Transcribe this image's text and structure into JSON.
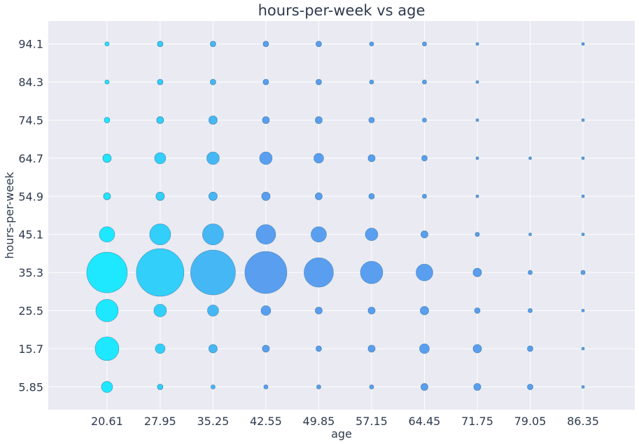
{
  "chart_data": {
    "type": "scatter",
    "title": "hours-per-week vs age",
    "xlabel": "age",
    "ylabel": "hours-per-week",
    "x_ticks": [
      "20.61",
      "27.95",
      "35.25",
      "42.55",
      "49.85",
      "57.15",
      "64.45",
      "71.75",
      "79.05",
      "86.35"
    ],
    "y_ticks": [
      "5.85",
      "15.7",
      "25.5",
      "35.3",
      "45.1",
      "54.9",
      "64.7",
      "74.5",
      "84.3",
      "94.1"
    ],
    "xlim": [
      12.5,
      93.5
    ],
    "ylim": [
      0.0,
      100.0
    ],
    "grid": true,
    "size_encoding": "relative count",
    "colors": {
      "background": "#e9eaf2",
      "grid": "#ffffff",
      "young": "#1ee8ff",
      "old": "#5a9ef0",
      "edge": "#2b6f9a"
    },
    "points": [
      {
        "x": 20.61,
        "y": 94.1,
        "s": 3
      },
      {
        "x": 27.95,
        "y": 94.1,
        "s": 4
      },
      {
        "x": 35.25,
        "y": 94.1,
        "s": 4
      },
      {
        "x": 42.55,
        "y": 94.1,
        "s": 4
      },
      {
        "x": 49.85,
        "y": 94.1,
        "s": 4
      },
      {
        "x": 57.15,
        "y": 94.1,
        "s": 3
      },
      {
        "x": 64.45,
        "y": 94.1,
        "s": 3
      },
      {
        "x": 71.75,
        "y": 94.1,
        "s": 2
      },
      {
        "x": 86.35,
        "y": 94.1,
        "s": 2
      },
      {
        "x": 20.61,
        "y": 84.3,
        "s": 3
      },
      {
        "x": 27.95,
        "y": 84.3,
        "s": 4
      },
      {
        "x": 35.25,
        "y": 84.3,
        "s": 4
      },
      {
        "x": 42.55,
        "y": 84.3,
        "s": 4
      },
      {
        "x": 49.85,
        "y": 84.3,
        "s": 4
      },
      {
        "x": 57.15,
        "y": 84.3,
        "s": 3
      },
      {
        "x": 64.45,
        "y": 84.3,
        "s": 3
      },
      {
        "x": 71.75,
        "y": 84.3,
        "s": 2
      },
      {
        "x": 20.61,
        "y": 74.5,
        "s": 4
      },
      {
        "x": 27.95,
        "y": 74.5,
        "s": 5
      },
      {
        "x": 35.25,
        "y": 74.5,
        "s": 6
      },
      {
        "x": 42.55,
        "y": 74.5,
        "s": 5
      },
      {
        "x": 49.85,
        "y": 74.5,
        "s": 5
      },
      {
        "x": 57.15,
        "y": 74.5,
        "s": 4
      },
      {
        "x": 64.45,
        "y": 74.5,
        "s": 3
      },
      {
        "x": 71.75,
        "y": 74.5,
        "s": 2
      },
      {
        "x": 86.35,
        "y": 74.5,
        "s": 2
      },
      {
        "x": 20.61,
        "y": 64.7,
        "s": 6
      },
      {
        "x": 27.95,
        "y": 64.7,
        "s": 8
      },
      {
        "x": 35.25,
        "y": 64.7,
        "s": 9
      },
      {
        "x": 42.55,
        "y": 64.7,
        "s": 9
      },
      {
        "x": 49.85,
        "y": 64.7,
        "s": 7
      },
      {
        "x": 57.15,
        "y": 64.7,
        "s": 5
      },
      {
        "x": 64.45,
        "y": 64.7,
        "s": 4
      },
      {
        "x": 71.75,
        "y": 64.7,
        "s": 2
      },
      {
        "x": 79.05,
        "y": 64.7,
        "s": 2
      },
      {
        "x": 86.35,
        "y": 64.7,
        "s": 2
      },
      {
        "x": 20.61,
        "y": 54.9,
        "s": 5
      },
      {
        "x": 27.95,
        "y": 54.9,
        "s": 6
      },
      {
        "x": 35.25,
        "y": 54.9,
        "s": 6
      },
      {
        "x": 42.55,
        "y": 54.9,
        "s": 6
      },
      {
        "x": 49.85,
        "y": 54.9,
        "s": 5
      },
      {
        "x": 57.15,
        "y": 54.9,
        "s": 4
      },
      {
        "x": 64.45,
        "y": 54.9,
        "s": 3
      },
      {
        "x": 71.75,
        "y": 54.9,
        "s": 2
      },
      {
        "x": 86.35,
        "y": 54.9,
        "s": 2
      },
      {
        "x": 20.61,
        "y": 45.1,
        "s": 11
      },
      {
        "x": 27.95,
        "y": 45.1,
        "s": 15
      },
      {
        "x": 35.25,
        "y": 45.1,
        "s": 15
      },
      {
        "x": 42.55,
        "y": 45.1,
        "s": 14
      },
      {
        "x": 49.85,
        "y": 45.1,
        "s": 11
      },
      {
        "x": 57.15,
        "y": 45.1,
        "s": 9
      },
      {
        "x": 64.45,
        "y": 45.1,
        "s": 5
      },
      {
        "x": 71.75,
        "y": 45.1,
        "s": 3
      },
      {
        "x": 79.05,
        "y": 45.1,
        "s": 2
      },
      {
        "x": 86.35,
        "y": 45.1,
        "s": 2
      },
      {
        "x": 20.61,
        "y": 35.3,
        "s": 29
      },
      {
        "x": 27.95,
        "y": 35.3,
        "s": 34
      },
      {
        "x": 35.25,
        "y": 35.3,
        "s": 32
      },
      {
        "x": 42.55,
        "y": 35.3,
        "s": 30
      },
      {
        "x": 49.85,
        "y": 35.3,
        "s": 21
      },
      {
        "x": 57.15,
        "y": 35.3,
        "s": 16
      },
      {
        "x": 64.45,
        "y": 35.3,
        "s": 12
      },
      {
        "x": 71.75,
        "y": 35.3,
        "s": 6
      },
      {
        "x": 79.05,
        "y": 35.3,
        "s": 3
      },
      {
        "x": 86.35,
        "y": 35.3,
        "s": 3
      },
      {
        "x": 20.61,
        "y": 25.5,
        "s": 16
      },
      {
        "x": 27.95,
        "y": 25.5,
        "s": 9
      },
      {
        "x": 35.25,
        "y": 25.5,
        "s": 8
      },
      {
        "x": 42.55,
        "y": 25.5,
        "s": 7
      },
      {
        "x": 49.85,
        "y": 25.5,
        "s": 5
      },
      {
        "x": 57.15,
        "y": 25.5,
        "s": 5
      },
      {
        "x": 64.45,
        "y": 25.5,
        "s": 6
      },
      {
        "x": 71.75,
        "y": 25.5,
        "s": 4
      },
      {
        "x": 79.05,
        "y": 25.5,
        "s": 3
      },
      {
        "x": 86.35,
        "y": 25.5,
        "s": 2
      },
      {
        "x": 20.61,
        "y": 15.7,
        "s": 17
      },
      {
        "x": 27.95,
        "y": 15.7,
        "s": 7
      },
      {
        "x": 35.25,
        "y": 15.7,
        "s": 6
      },
      {
        "x": 42.55,
        "y": 15.7,
        "s": 5
      },
      {
        "x": 49.85,
        "y": 15.7,
        "s": 4
      },
      {
        "x": 57.15,
        "y": 15.7,
        "s": 5
      },
      {
        "x": 64.45,
        "y": 15.7,
        "s": 7
      },
      {
        "x": 71.75,
        "y": 15.7,
        "s": 6
      },
      {
        "x": 79.05,
        "y": 15.7,
        "s": 4
      },
      {
        "x": 86.35,
        "y": 15.7,
        "s": 2
      },
      {
        "x": 20.61,
        "y": 5.85,
        "s": 8
      },
      {
        "x": 27.95,
        "y": 5.85,
        "s": 4
      },
      {
        "x": 35.25,
        "y": 5.85,
        "s": 3
      },
      {
        "x": 42.55,
        "y": 5.85,
        "s": 3
      },
      {
        "x": 49.85,
        "y": 5.85,
        "s": 3
      },
      {
        "x": 57.15,
        "y": 5.85,
        "s": 3
      },
      {
        "x": 64.45,
        "y": 5.85,
        "s": 5
      },
      {
        "x": 71.75,
        "y": 5.85,
        "s": 5
      },
      {
        "x": 79.05,
        "y": 5.85,
        "s": 4
      },
      {
        "x": 86.35,
        "y": 5.85,
        "s": 2
      }
    ]
  }
}
